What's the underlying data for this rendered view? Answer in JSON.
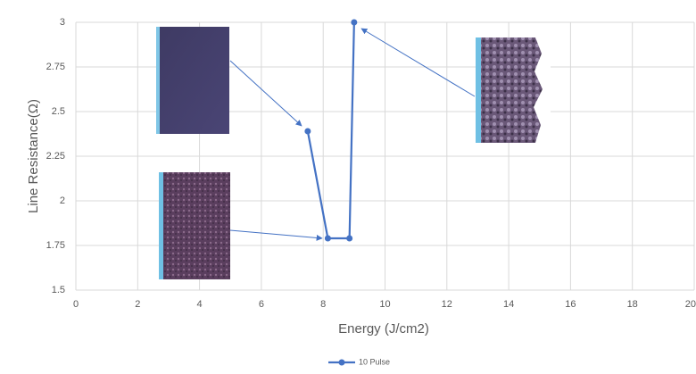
{
  "chart_data": {
    "type": "line",
    "xlabel": "Energy (J/cm2)",
    "ylabel": "Line Resistance(Ω)",
    "xlim": [
      0,
      20
    ],
    "xticks": [
      0,
      2,
      4,
      6,
      8,
      10,
      12,
      14,
      16,
      18,
      20
    ],
    "ylim": [
      1.5,
      3
    ],
    "yticks": [
      1.5,
      1.75,
      2,
      2.25,
      2.5,
      2.75,
      3
    ],
    "grid": true,
    "legend": "bottom",
    "series": [
      {
        "name": "10 Pulse",
        "color": "#4472c4",
        "x": [
          7.5,
          8.15,
          8.85,
          9.0
        ],
        "values": [
          2.39,
          1.79,
          1.79,
          3.0
        ]
      }
    ]
  }
}
